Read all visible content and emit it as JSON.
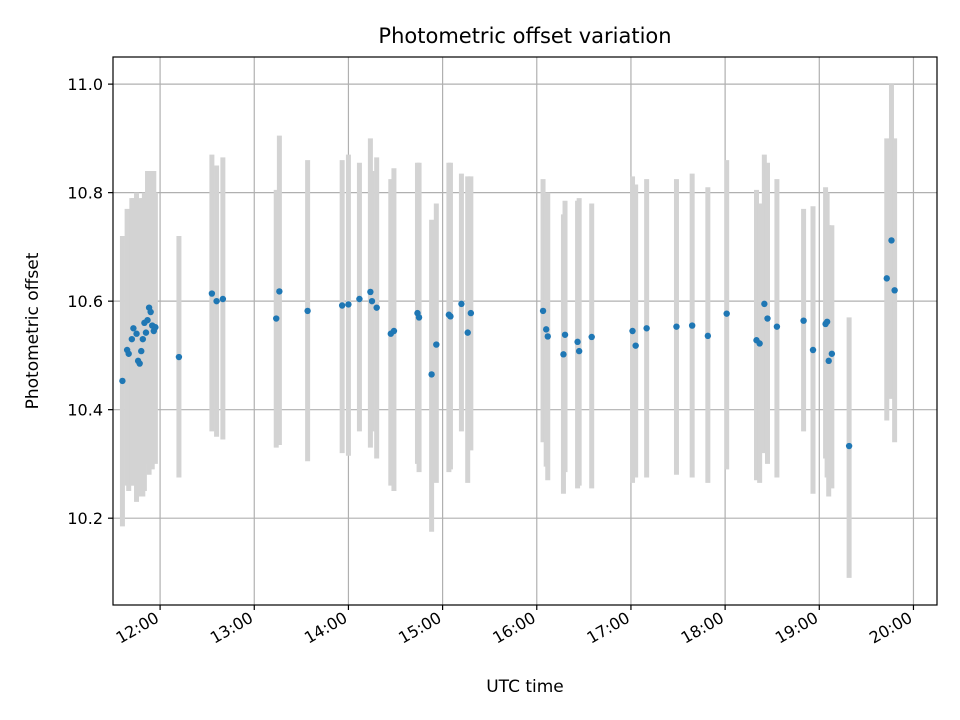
{
  "chart_data": {
    "type": "scatter",
    "title": "Photometric offset variation",
    "xlabel": "UTC time",
    "ylabel": "Photometric offset",
    "xlim": [
      "11:30",
      "20:15"
    ],
    "ylim": [
      10.04,
      11.05
    ],
    "grid": true,
    "x_ticks": [
      "12:00",
      "13:00",
      "14:00",
      "15:00",
      "16:00",
      "17:00",
      "18:00",
      "19:00",
      "20:00"
    ],
    "y_ticks": [
      "10.2",
      "10.4",
      "10.6",
      "10.8",
      "11.0"
    ],
    "colors": {
      "points": "#1f77b4",
      "error_bars": "#d3d3d3"
    },
    "series": [
      {
        "x": [
          "11:36",
          "11:39",
          "11:40",
          "11:42",
          "11:43",
          "11:45",
          "11:46",
          "11:47",
          "11:48",
          "11:49",
          "11:50",
          "11:51",
          "11:52",
          "11:53",
          "11:54",
          "11:55",
          "11:56",
          "11:57",
          "12:12",
          "12:33",
          "12:36",
          "12:40",
          "13:14",
          "13:16",
          "13:34",
          "13:56",
          "14:00",
          "14:07",
          "14:14",
          "14:15",
          "14:18",
          "14:27",
          "14:29",
          "14:44",
          "14:45",
          "14:53",
          "14:56",
          "15:04",
          "15:05",
          "15:12",
          "15:16",
          "15:18",
          "16:04",
          "16:06",
          "16:07",
          "16:17",
          "16:18",
          "16:26",
          "16:27",
          "16:35",
          "17:01",
          "17:03",
          "17:10",
          "17:29",
          "17:39",
          "17:49",
          "18:01",
          "18:20",
          "18:22",
          "18:25",
          "18:27",
          "18:33",
          "18:50",
          "18:56",
          "19:04",
          "19:05",
          "19:06",
          "19:08",
          "19:19",
          "19:43",
          "19:46",
          "19:48"
        ],
        "y": [
          10.453,
          10.51,
          10.503,
          10.53,
          10.55,
          10.54,
          10.49,
          10.485,
          10.508,
          10.53,
          10.56,
          10.542,
          10.565,
          10.588,
          10.58,
          10.555,
          10.545,
          10.552,
          10.497,
          10.614,
          10.6,
          10.604,
          10.568,
          10.618,
          10.582,
          10.592,
          10.594,
          10.604,
          10.617,
          10.6,
          10.588,
          10.54,
          10.545,
          10.578,
          10.57,
          10.465,
          10.52,
          10.575,
          10.572,
          10.595,
          10.542,
          10.578,
          10.582,
          10.548,
          10.535,
          10.502,
          10.538,
          10.525,
          10.508,
          10.534,
          10.545,
          10.518,
          10.55,
          10.553,
          10.555,
          10.536,
          10.577,
          10.528,
          10.522,
          10.595,
          10.568,
          10.553,
          10.564,
          10.51,
          10.558,
          10.562,
          10.49,
          10.503,
          10.333,
          10.642,
          10.712,
          10.62
        ],
        "err_low": [
          10.185,
          10.26,
          10.25,
          10.26,
          10.26,
          10.23,
          10.26,
          10.25,
          10.24,
          10.24,
          10.25,
          10.3,
          10.3,
          10.28,
          10.32,
          10.29,
          10.32,
          10.3,
          10.275,
          10.36,
          10.35,
          10.345,
          10.33,
          10.335,
          10.305,
          10.32,
          10.315,
          10.36,
          10.33,
          10.36,
          10.31,
          10.26,
          10.25,
          10.3,
          10.285,
          10.175,
          10.265,
          10.285,
          10.29,
          10.36,
          10.265,
          10.325,
          10.34,
          10.295,
          10.27,
          10.245,
          10.285,
          10.255,
          10.26,
          10.255,
          10.265,
          10.275,
          10.275,
          10.28,
          10.275,
          10.265,
          10.29,
          10.27,
          10.265,
          10.32,
          10.3,
          10.275,
          10.36,
          10.245,
          10.31,
          10.275,
          10.24,
          10.255,
          10.09,
          10.38,
          10.42,
          10.34
        ],
        "err_high": [
          10.72,
          10.77,
          10.75,
          10.79,
          10.79,
          10.8,
          10.74,
          10.72,
          10.79,
          10.79,
          10.8,
          10.79,
          10.84,
          10.82,
          10.84,
          10.81,
          10.84,
          10.8,
          10.72,
          10.87,
          10.85,
          10.865,
          10.805,
          10.905,
          10.86,
          10.86,
          10.87,
          10.855,
          10.9,
          10.84,
          10.865,
          10.825,
          10.845,
          10.855,
          10.855,
          10.75,
          10.78,
          10.855,
          10.855,
          10.835,
          10.83,
          10.83,
          10.825,
          10.8,
          10.8,
          10.76,
          10.785,
          10.785,
          10.79,
          10.78,
          10.83,
          10.815,
          10.825,
          10.825,
          10.835,
          10.81,
          10.86,
          10.805,
          10.78,
          10.87,
          10.855,
          10.825,
          10.77,
          10.775,
          10.81,
          10.8,
          10.74,
          10.74,
          10.57,
          10.9,
          11.0,
          10.9
        ]
      }
    ]
  }
}
